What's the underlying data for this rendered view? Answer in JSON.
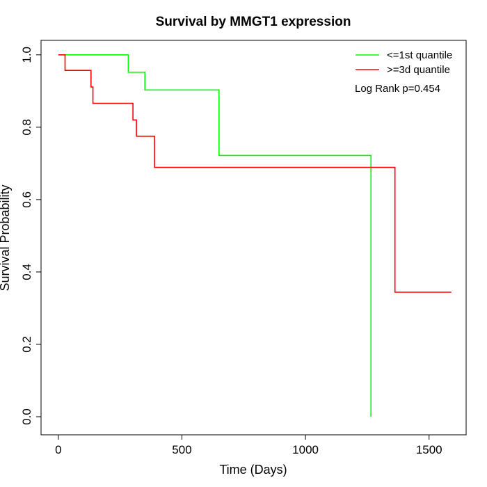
{
  "chart_data": {
    "type": "line",
    "step": true,
    "title": "Survival by MMGT1 expression",
    "xlabel": "Time (Days)",
    "ylabel": "Survival Probability",
    "xlim": [
      -70,
      1650
    ],
    "ylim": [
      -0.05,
      1.04
    ],
    "x_ticks": [
      0,
      500,
      1000,
      1500
    ],
    "x_tick_labels": [
      "0",
      "500",
      "1000",
      "1500"
    ],
    "y_ticks": [
      0.0,
      0.2,
      0.4,
      0.6,
      0.8,
      1.0
    ],
    "y_tick_labels": [
      "0.0",
      "0.2",
      "0.4",
      "0.6",
      "0.8",
      "1.0"
    ],
    "grid": false,
    "legend_position": "top-right",
    "series": [
      {
        "name": "<=1st quantile",
        "color": "#00ff00",
        "points": [
          [
            0,
            1.0
          ],
          [
            283,
            1.0
          ],
          [
            283,
            0.952
          ],
          [
            350,
            0.952
          ],
          [
            350,
            0.903
          ],
          [
            650,
            0.903
          ],
          [
            650,
            0.722
          ],
          [
            1265,
            0.722
          ],
          [
            1265,
            0.0
          ]
        ]
      },
      {
        "name": ">=3d quantile",
        "color": "#ff0000",
        "points": [
          [
            0,
            1.0
          ],
          [
            27,
            1.0
          ],
          [
            27,
            0.957
          ],
          [
            132,
            0.957
          ],
          [
            132,
            0.911
          ],
          [
            140,
            0.911
          ],
          [
            140,
            0.866
          ],
          [
            302,
            0.866
          ],
          [
            302,
            0.82
          ],
          [
            316,
            0.82
          ],
          [
            316,
            0.775
          ],
          [
            389,
            0.775
          ],
          [
            389,
            0.689
          ],
          [
            1362,
            0.689
          ],
          [
            1362,
            0.344
          ],
          [
            1590,
            0.344
          ]
        ]
      }
    ],
    "annotation": "Log Rank p=0.454"
  }
}
